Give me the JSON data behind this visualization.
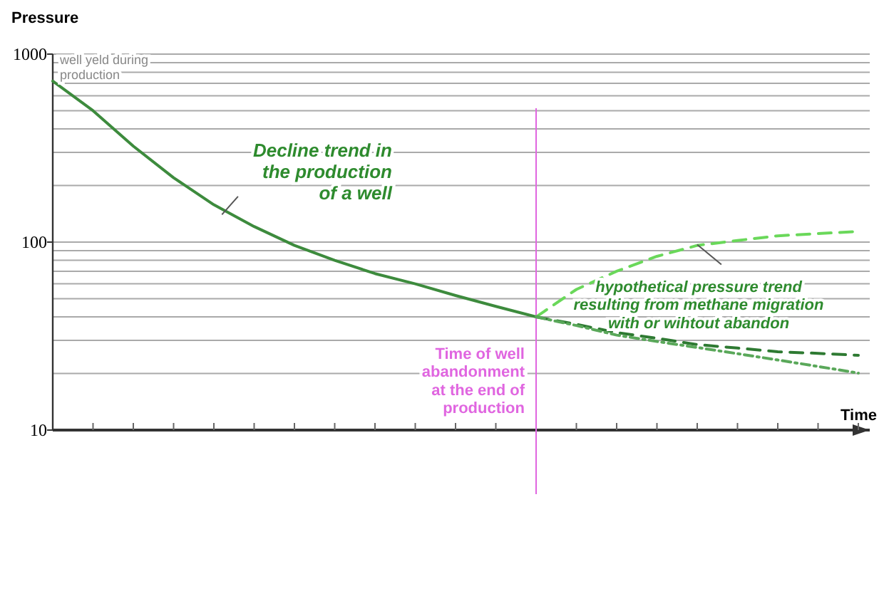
{
  "chart_data": {
    "type": "line",
    "ylabel": "Pressure",
    "xlabel": "Time",
    "log": "y",
    "grid": "y",
    "tick_labels": "y",
    "categories": [
      null,
      null,
      null,
      null,
      null,
      null,
      null,
      null,
      null,
      null,
      null,
      null,
      null,
      null,
      null,
      null,
      null,
      null,
      null,
      null,
      null
    ],
    "ylim": [
      10,
      1000
    ],
    "yticks": [
      10,
      100,
      1000
    ],
    "series": [
      {
        "color": "#3d8b3d",
        "line_style": "solid",
        "values": [
          718,
          500,
          324,
          220,
          158,
          121,
          96,
          80,
          68,
          60,
          52,
          45.5,
          40,
          null,
          null,
          null,
          null,
          null,
          null,
          null,
          null
        ]
      },
      {
        "color": "#6ad85a",
        "line_style": "dashed",
        "values": [
          null,
          null,
          null,
          null,
          null,
          null,
          null,
          null,
          null,
          null,
          null,
          null,
          40,
          56,
          70,
          84,
          96,
          102,
          108,
          111,
          114
        ]
      },
      {
        "color": "#2e7a32",
        "line_style": "dashed",
        "values": [
          null,
          null,
          null,
          null,
          null,
          null,
          null,
          null,
          null,
          null,
          null,
          null,
          40,
          36.5,
          33,
          30.8,
          28.5,
          27.3,
          26.1,
          25.6,
          25
        ]
      },
      {
        "color": "#5aa85a",
        "line_style": "dotted",
        "values": [
          null,
          null,
          null,
          null,
          null,
          null,
          null,
          null,
          null,
          null,
          null,
          null,
          40,
          36,
          32,
          29.6,
          27.5,
          25.5,
          23.6,
          21.8,
          20.1
        ]
      }
    ],
    "ref_lines": [
      {
        "axis": "x",
        "label": "Time of well\nabandonment\nat the end of\nproduction",
        "color": "#e066e0"
      }
    ],
    "annotations": [
      "well yeld during\nproduction",
      "Decline trend in\nthe production\nof a well",
      "hypothetical pressure trend\nresulting from methane migration\nwith or wihtout abandon"
    ]
  }
}
